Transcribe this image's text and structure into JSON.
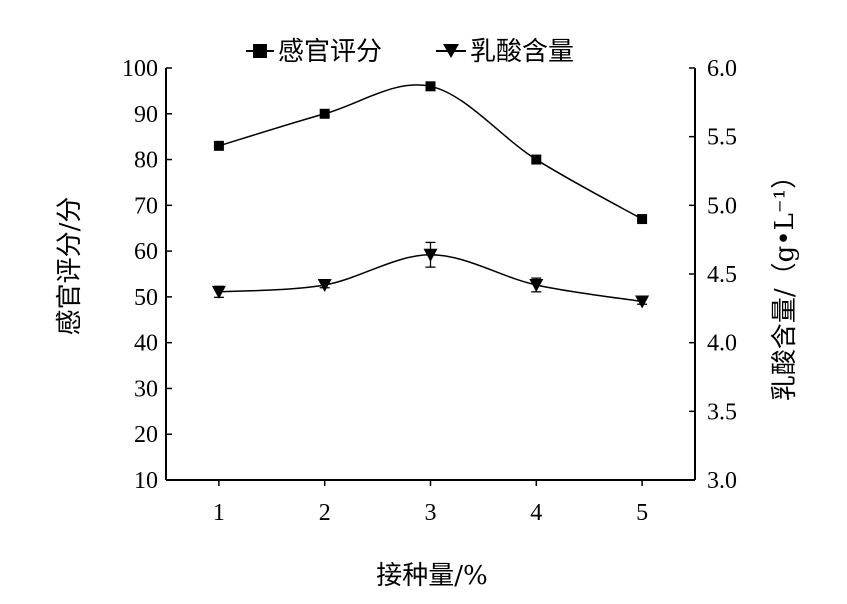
{
  "chart_data": {
    "type": "line",
    "x": [
      1,
      2,
      3,
      4,
      5
    ],
    "xlabel": "接种量/%",
    "x_ticks": [
      "1",
      "2",
      "3",
      "4",
      "5"
    ],
    "y_left_label": "感官评分/分",
    "y_left_lim": [
      10,
      100
    ],
    "y_left_ticks": [
      "10",
      "20",
      "30",
      "40",
      "50",
      "60",
      "70",
      "80",
      "90",
      "100"
    ],
    "y_right_label": "乳酸含量/（g•L⁻¹）",
    "y_right_lim": [
      3.0,
      6.0
    ],
    "y_right_ticks": [
      "3.0",
      "3.5",
      "4.0",
      "4.5",
      "5.0",
      "5.5",
      "6.0"
    ],
    "grid": false,
    "legend_position": "top",
    "series": [
      {
        "name": "感官评分",
        "axis": "left",
        "marker": "square",
        "values": [
          83,
          90,
          96,
          80,
          67
        ]
      },
      {
        "name": "乳酸含量",
        "axis": "right",
        "marker": "triangle-down",
        "values": [
          4.37,
          4.42,
          4.64,
          4.42,
          4.3
        ],
        "error": [
          0.04,
          0.02,
          0.09,
          0.05,
          0.02
        ]
      }
    ],
    "colors": {
      "line": "#000000",
      "background": "#ffffff"
    }
  }
}
